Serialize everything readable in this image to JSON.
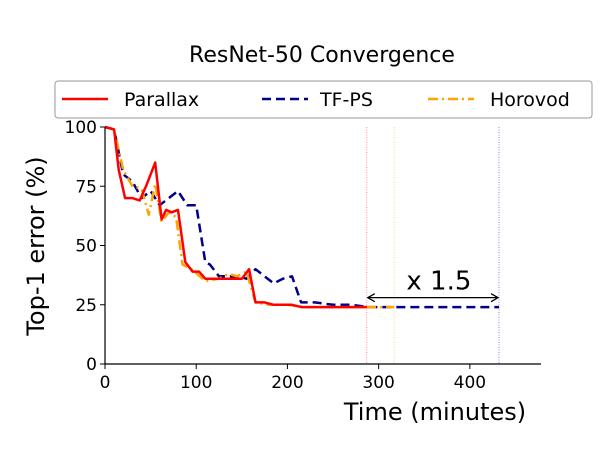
{
  "chart_data": {
    "type": "line",
    "title": "ResNet-50 Convergence",
    "xlabel": "Time (minutes)",
    "ylabel": "Top-1 error (%)",
    "xlim": [
      0,
      478
    ],
    "ylim": [
      0,
      100
    ],
    "xticks": [
      0,
      100,
      200,
      300,
      400
    ],
    "yticks": [
      0,
      25,
      50,
      75,
      100
    ],
    "legend_position": "top",
    "series": [
      {
        "name": "Parallax",
        "color": "#ff0000",
        "style": "solid",
        "x": [
          0,
          10,
          15,
          22,
          30,
          38,
          45,
          55,
          62,
          67,
          73,
          80,
          88,
          96,
          103,
          110,
          120,
          130,
          140,
          150,
          158,
          165,
          175,
          185,
          195,
          205,
          215,
          230,
          250,
          270,
          287
        ],
        "y": [
          100,
          99,
          82,
          70,
          70,
          69,
          75,
          85,
          61,
          65,
          64,
          65,
          43,
          39,
          39,
          36,
          36,
          36,
          36,
          36,
          40,
          26,
          26,
          25,
          25,
          25,
          24,
          24,
          24,
          24,
          24
        ]
      },
      {
        "name": "TF-PS",
        "color": "#00008b",
        "style": "dashed",
        "x": [
          0,
          10,
          20,
          30,
          40,
          50,
          60,
          70,
          80,
          90,
          100,
          110,
          115,
          125,
          135,
          145,
          155,
          165,
          175,
          185,
          195,
          205,
          215,
          230,
          250,
          270,
          290,
          320,
          360,
          400,
          432
        ],
        "y": [
          100,
          99,
          80,
          77,
          70,
          73,
          67,
          70,
          73,
          67,
          67,
          43,
          42,
          37,
          37,
          37,
          36,
          40,
          37,
          34,
          36,
          37,
          26,
          26,
          25,
          25,
          24,
          24,
          24,
          24,
          24
        ]
      },
      {
        "name": "Horovod",
        "color": "#ffa500",
        "style": "dashdot",
        "x": [
          0,
          10,
          20,
          30,
          40,
          48,
          55,
          62,
          70,
          78,
          85,
          95,
          110,
          125,
          135,
          145,
          155,
          165,
          180,
          200,
          220,
          250,
          280,
          300,
          317
        ],
        "y": [
          100,
          99,
          82,
          75,
          74,
          63,
          76,
          60,
          64,
          62,
          42,
          40,
          35,
          36,
          38,
          37,
          39,
          26,
          25,
          25,
          24,
          24,
          24,
          24,
          24
        ]
      }
    ],
    "vlines": [
      {
        "x": 287,
        "color": "#ff0000"
      },
      {
        "x": 317,
        "color": "#ffa500"
      },
      {
        "x": 432,
        "color": "#00008b"
      }
    ],
    "annotation": {
      "text": "x 1.5",
      "from_x": 287,
      "to_x": 432,
      "y": 28
    }
  }
}
